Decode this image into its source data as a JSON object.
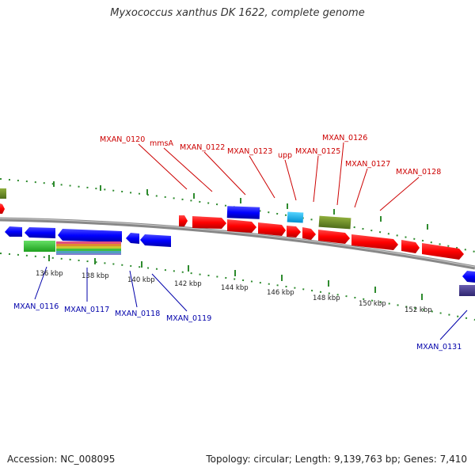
{
  "title": "Myxococcus xanthus DK 1622, complete genome",
  "footer": {
    "accession": "Accession: NC_008095",
    "summary": "Topology: circular; Length: 9,139,763 bp; Genes: 7,410"
  },
  "colors": {
    "forward_label": "#cc0000",
    "reverse_label": "#0000aa",
    "backbone": "#888888",
    "tick_marks": "#2e8b2e",
    "forward_gene": "#ff0000",
    "reverse_gene": "#0000ff",
    "rna": "#00b0f0",
    "olive_feature": "#6b8e23",
    "green_feature": "#33cc33",
    "navy_feature": "#4b3f8f"
  },
  "scale_labels": [
    "136 kbp",
    "138 kbp",
    "140 kbp",
    "142 kbp",
    "144 kbp",
    "146 kbp",
    "148 kbp",
    "150 kbp",
    "152 kbp"
  ],
  "forward_labels": [
    "MXAN_0120",
    "mmsA",
    "MXAN_0122",
    "MXAN_0123",
    "upp",
    "MXAN_0125",
    "MXAN_0126",
    "MXAN_0127",
    "MXAN_0128"
  ],
  "reverse_labels": [
    "MXAN_0116",
    "MXAN_0117",
    "MXAN_0118",
    "MXAN_0119",
    "MXAN_0131"
  ]
}
